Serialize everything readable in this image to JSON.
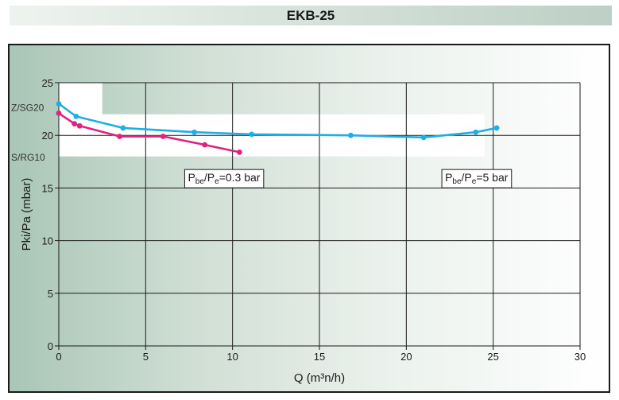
{
  "chart_data": {
    "type": "line",
    "title": "EKB-25",
    "xlabel": "Q (m³n/h)",
    "ylabel": "Pki/Pa (mbar)",
    "xlim": [
      0,
      30
    ],
    "ylim": [
      0,
      25
    ],
    "x_ticks": [
      0,
      5,
      10,
      15,
      20,
      25,
      30
    ],
    "y_ticks": [
      0,
      5,
      10,
      15,
      20,
      25
    ],
    "grid": true,
    "bands": [
      {
        "label": "Z/SG20",
        "y_from": 20,
        "y_to": 25,
        "x_from": 0,
        "x_to": 2.5
      },
      {
        "label": "Z/SG20",
        "y_from": 20,
        "y_to": 22,
        "x_from": 2.5,
        "x_to": 24.5
      },
      {
        "label": "S/RG10",
        "y_from": 18,
        "y_to": 20,
        "x_from": 0,
        "x_to": 24.5
      }
    ],
    "series": [
      {
        "name": "Pbe/Pe=5 bar",
        "color": "#1eaee6",
        "x": [
          0,
          1,
          3.7,
          7.8,
          11.1,
          16.8,
          21,
          24,
          25.2
        ],
        "y": [
          23.0,
          21.8,
          20.7,
          20.3,
          20.1,
          20.0,
          19.8,
          20.3,
          20.7
        ]
      },
      {
        "name": "Pbe/Pe=0.3 bar",
        "color": "#e0227f",
        "x": [
          0,
          0.9,
          1.2,
          3.5,
          6.0,
          8.4,
          10.4
        ],
        "y": [
          22.1,
          21.1,
          20.9,
          19.9,
          19.9,
          19.1,
          18.4
        ]
      }
    ],
    "annotations": [
      {
        "series": "Pbe/Pe=0.3 bar",
        "base": "P",
        "sub1": "be",
        "mid": "/P",
        "sub2": "e",
        "rest": "=0.3 bar",
        "x": 7.2,
        "y": 16.0
      },
      {
        "series": "Pbe/Pe=5 bar",
        "base": "P",
        "sub1": "be",
        "mid": "/P",
        "sub2": "e",
        "rest": "=5 bar",
        "x": 22.0,
        "y": 16.0
      }
    ]
  }
}
